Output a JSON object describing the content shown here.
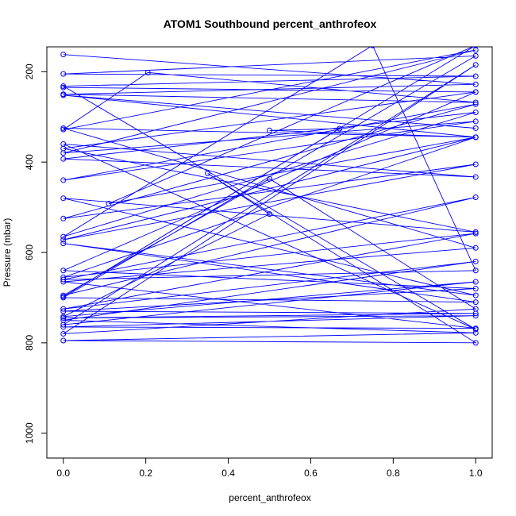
{
  "chart_data": {
    "type": "line",
    "title": "ATOM1 Southbound percent_anthrofeox",
    "xlabel": "percent_anthrofeox",
    "ylabel": "Pressure (mbar)",
    "xlim": [
      -0.04,
      1.04
    ],
    "ylim": [
      1055,
      145
    ],
    "y_reversed": true,
    "xticks": [
      0.0,
      0.2,
      0.4,
      0.6,
      0.8,
      1.0
    ],
    "xtick_labels": [
      "0.0",
      "0.2",
      "0.4",
      "0.6",
      "0.8",
      "1.0"
    ],
    "yticks": [
      200,
      400,
      600,
      800,
      1000
    ],
    "ytick_labels": [
      "200",
      "400",
      "600",
      "800",
      "1000"
    ],
    "grid": false,
    "series_color": "#0000ff",
    "markers": "open-circle",
    "series": [
      {
        "points": [
          [
            0.0,
            162
          ],
          [
            1.0,
            228
          ],
          [
            0.0,
            250
          ],
          [
            1.0,
            268
          ],
          [
            0.205,
            202
          ],
          [
            0.0,
            328
          ],
          [
            1.0,
            152
          ],
          [
            0.0,
            380
          ],
          [
            1.0,
            310
          ],
          [
            0.0,
            440
          ],
          [
            1.0,
            272
          ],
          [
            0.0,
            525
          ],
          [
            1.0,
            405
          ],
          [
            0.0,
            572
          ],
          [
            1.0,
            345
          ],
          [
            0.11,
            492
          ],
          [
            1.0,
            142
          ],
          [
            0.0,
            698
          ],
          [
            0.67,
            326
          ],
          [
            0.5,
            330
          ],
          [
            1.0,
            345
          ],
          [
            0.0,
            655
          ],
          [
            1.0,
            558
          ],
          [
            0.0,
            725
          ],
          [
            1.0,
            620
          ],
          [
            0.0,
            750
          ],
          [
            1.0,
            778
          ],
          [
            0.0,
            795
          ],
          [
            1.0,
            800
          ],
          [
            0.35,
            425
          ],
          [
            0.5,
            515
          ],
          [
            0.0,
            742
          ],
          [
            1.0,
            665
          ],
          [
            0.0,
            760
          ],
          [
            1.0,
            185
          ],
          [
            0.0,
            780
          ],
          [
            1.0,
            725
          ],
          [
            0.5,
            437
          ],
          [
            0.0,
            695
          ],
          [
            1.0,
            478
          ],
          [
            0.0,
            660
          ],
          [
            1.0,
            640
          ],
          [
            0.75,
            142
          ],
          [
            0.0,
            565
          ],
          [
            1.0,
            290
          ],
          [
            0.0,
            393
          ],
          [
            1.0,
            433
          ],
          [
            0.0,
            360
          ],
          [
            1.0,
            770
          ],
          [
            0.0,
            232
          ],
          [
            1.0,
            210
          ],
          [
            0.0,
            205
          ],
          [
            1.0,
            165
          ],
          [
            0.0,
            700
          ],
          [
            1.0,
            710
          ],
          [
            0.0,
            580
          ],
          [
            1.0,
            695
          ],
          [
            0.0,
            480
          ],
          [
            1.0,
            555
          ],
          [
            0.0,
            370
          ],
          [
            1.0,
            245
          ],
          [
            0.0,
            235
          ],
          [
            1.0,
            245
          ],
          [
            0.0,
            640
          ],
          [
            1.0,
            680
          ],
          [
            0.0,
            730
          ],
          [
            1.0,
            735
          ],
          [
            0.0,
            745
          ],
          [
            1.0,
            740
          ],
          [
            0.0,
            765
          ],
          [
            1.0,
            768
          ],
          [
            0.0,
            665
          ],
          [
            1.0,
            590
          ],
          [
            0.0,
            325
          ],
          [
            1.0,
            345
          ],
          [
            0.0,
            252
          ],
          [
            1.0,
            325
          ]
        ]
      }
    ]
  }
}
